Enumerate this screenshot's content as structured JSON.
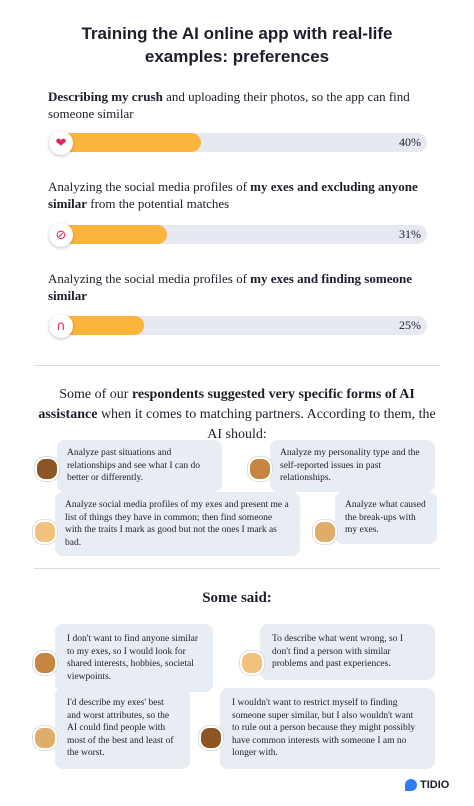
{
  "title": "Training the AI online app with real-life examples: preferences",
  "chart_data": {
    "type": "bar",
    "orientation": "horizontal",
    "categories": [
      [
        {
          "text": "Describing my crush",
          "bold": true
        },
        {
          "text": " and uploading their photos, so the app can find someone similar",
          "bold": false
        }
      ],
      [
        {
          "text": "Analyzing the social media profiles of ",
          "bold": false
        },
        {
          "text": "my exes and excluding anyone similar",
          "bold": true
        },
        {
          "text": " from the potential matches",
          "bold": false
        }
      ],
      [
        {
          "text": "Analyzing the social media profiles of ",
          "bold": false
        },
        {
          "text": "my exes and finding someone similar",
          "bold": true
        }
      ]
    ],
    "values": [
      40,
      31,
      25
    ],
    "value_labels": [
      "40%",
      "31%",
      "25%"
    ],
    "color": "#fbb53c",
    "track_color": "#e6e9f1",
    "xlim": [
      0,
      100
    ]
  },
  "intro": [
    {
      "text": "Some of our ",
      "bold": false
    },
    {
      "text": "respondents suggested very specific forms of AI assistance",
      "bold": true
    },
    {
      "text": " when it comes to matching partners. According to them, the AI should:",
      "bold": false
    }
  ],
  "suggestions": [
    "Analyze past situations and relationships and see what I can do better or differently.",
    "Analyze my personality type and the self-reported issues in past relationships.",
    "Analyze social media profiles of my exes and present me a list of things they have in common; then find someone with the traits I mark as good but not the ones I mark as bad.",
    "Analyze what caused the break-ups with my exes."
  ],
  "quotes_heading": "Some said:",
  "quotes": [
    "I don't want to find anyone similar to my exes, so I would look for shared interests, hobbies, societal viewpoints.",
    "To describe what went wrong, so I don't find a person with similar problems and past experiences.",
    "I'd describe my exes' best and worst attributes, so the AI could find people with most of the best and least of the worst.",
    "I wouldn't want to restrict myself to finding someone super similar, but I also wouldn't want to rule out a person because they might possibly have common interests with someone I am no longer with."
  ],
  "brand": "TIDIO"
}
